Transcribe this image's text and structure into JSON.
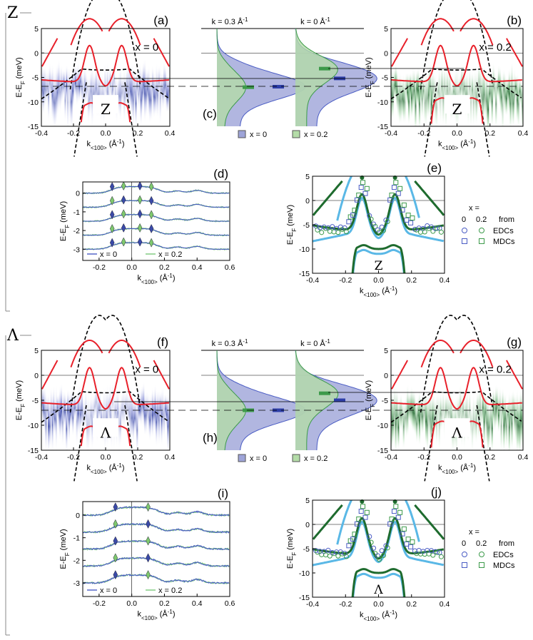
{
  "sections": [
    "Z",
    "Λ"
  ],
  "colors": {
    "blue": "#2d3ea8",
    "blue_light": "#4a5cc4",
    "green": "#3c9a4a",
    "green_light": "#7bc97a",
    "red": "#e8202a",
    "cyan": "#5ab8e6",
    "dark_green": "#1e6b2e"
  },
  "labels": {
    "energy_axis": "E-E",
    "energy_sub": "F",
    "energy_unit": " (meV)",
    "k_axis": "k",
    "k_sub": "<100>",
    "k_unit": " (Å",
    "k_sup": "-1",
    "k_close": ")"
  },
  "chart_data": [
    {
      "id": "a",
      "type": "heatmap",
      "label": "(a)",
      "zone": "Z",
      "x_label": "x = 0",
      "series": "blue",
      "xlim": [
        -0.4,
        0.4
      ],
      "ylim": [
        -15,
        5
      ],
      "xticks": [
        "-0.4",
        "-0.2",
        "0.0",
        "0.2",
        "0.4"
      ],
      "yticks": [
        "5",
        "0",
        "-5",
        "-10",
        "-15"
      ],
      "band_bottom": -11,
      "flat_band": -6
    },
    {
      "id": "b",
      "type": "heatmap",
      "label": "(b)",
      "zone": "Z",
      "x_label": "x = 0.2",
      "series": "green",
      "xlim": [
        -0.4,
        0.4
      ],
      "ylim": [
        -15,
        5
      ],
      "xticks": [
        "-0.4",
        "-0.2",
        "0.0",
        "0.2",
        "0.4"
      ],
      "yticks": [
        "5",
        "0",
        "-5",
        "-10",
        "-15"
      ],
      "band_bottom": -10,
      "flat_band": -6.5
    },
    {
      "id": "c",
      "type": "area",
      "label": "(c)",
      "titles": [
        "k = 0.3 Å",
        "k = 0 Å"
      ],
      "title_sup": "-1",
      "legend": [
        "x = 0",
        "x = 0.2"
      ],
      "peaks": {
        "k03_x0": -6.9,
        "k03_x02": -7.0,
        "k0_x0": -5.2,
        "k0_x02": -3.2
      }
    },
    {
      "id": "d",
      "type": "line",
      "label": "(d)",
      "xlim": [
        -0.3,
        0.6
      ],
      "ylim": [
        -3.6,
        0.6
      ],
      "xticks": [
        "-0.2",
        "0.0",
        "0.2",
        "0.4",
        "0.6"
      ],
      "yticks": [
        "0",
        "-1",
        "-2",
        "-3"
      ],
      "y_label": "E-E",
      "y_sub": "F",
      "y_unit": " (meV)",
      "legend": [
        "x = 0",
        "x = 0.2"
      ],
      "peak_k": [
        -0.12,
        -0.05,
        0.05,
        0.12
      ]
    },
    {
      "id": "e",
      "type": "scatter",
      "label": "(e)",
      "zone": "Z",
      "xlim": [
        -0.4,
        0.4
      ],
      "ylim": [
        -15,
        5
      ],
      "xticks": [
        "-0.4",
        "-0.2",
        "0.0",
        "0.2",
        "0.4"
      ],
      "yticks": [
        "5",
        "0",
        "-5",
        "-10",
        "-15"
      ],
      "legend_title": "x =",
      "legend_cols": [
        "0",
        "0.2",
        "from"
      ],
      "legend_rows": [
        "EDCs",
        "MDCs"
      ]
    },
    {
      "id": "f",
      "type": "heatmap",
      "label": "(f)",
      "zone": "Λ",
      "x_label": "x = 0",
      "series": "blue",
      "xlim": [
        -0.4,
        0.4
      ],
      "ylim": [
        -15,
        5
      ],
      "xticks": [
        "-0.4",
        "-0.2",
        "0.0",
        "0.2",
        "0.4"
      ],
      "yticks": [
        "5",
        "0",
        "-5",
        "-10",
        "-15"
      ],
      "band_bottom": -11,
      "flat_band": -6
    },
    {
      "id": "g",
      "type": "heatmap",
      "label": "(g)",
      "zone": "Λ",
      "x_label": "x = 0.2",
      "series": "green",
      "xlim": [
        -0.4,
        0.4
      ],
      "ylim": [
        -15,
        5
      ],
      "xticks": [
        "-0.4",
        "-0.2",
        "0.0",
        "0.2",
        "0.4"
      ],
      "yticks": [
        "5",
        "0",
        "-5",
        "-10",
        "-15"
      ],
      "band_bottom": -10,
      "flat_band": -6.5
    },
    {
      "id": "h",
      "type": "area",
      "label": "(h)",
      "titles": [
        "k = 0.3 Å",
        "k = 0 Å"
      ],
      "title_sup": "-1",
      "legend": [
        "x = 0",
        "x = 0.2"
      ],
      "peaks": {
        "k03_x0": -7.0,
        "k03_x02": -7.0,
        "k0_x0": -5.0,
        "k0_x02": -3.6
      }
    },
    {
      "id": "i",
      "type": "line",
      "label": "(i)",
      "xlim": [
        -0.3,
        0.6
      ],
      "ylim": [
        -3.6,
        0.6
      ],
      "xticks": [
        "-0.2",
        "0.0",
        "0.2",
        "0.4",
        "0.6"
      ],
      "yticks": [
        "0",
        "-1",
        "-2",
        "-3"
      ],
      "y_label": "E-E",
      "y_sub": "F",
      "y_unit": " (meV)",
      "legend": [
        "x = 0",
        "x = 0.2"
      ],
      "peak_k": [
        -0.1,
        0.1
      ]
    },
    {
      "id": "j",
      "type": "scatter",
      "label": "(j)",
      "zone": "Λ",
      "xlim": [
        -0.4,
        0.4
      ],
      "ylim": [
        -15,
        5
      ],
      "xticks": [
        "-0.4",
        "-0.2",
        "0.0",
        "0.2",
        "0.4"
      ],
      "yticks": [
        "5",
        "0",
        "-5",
        "-10",
        "-15"
      ],
      "legend_title": "x =",
      "legend_cols": [
        "0",
        "0.2",
        "from"
      ],
      "legend_rows": [
        "EDCs",
        "MDCs"
      ]
    }
  ]
}
